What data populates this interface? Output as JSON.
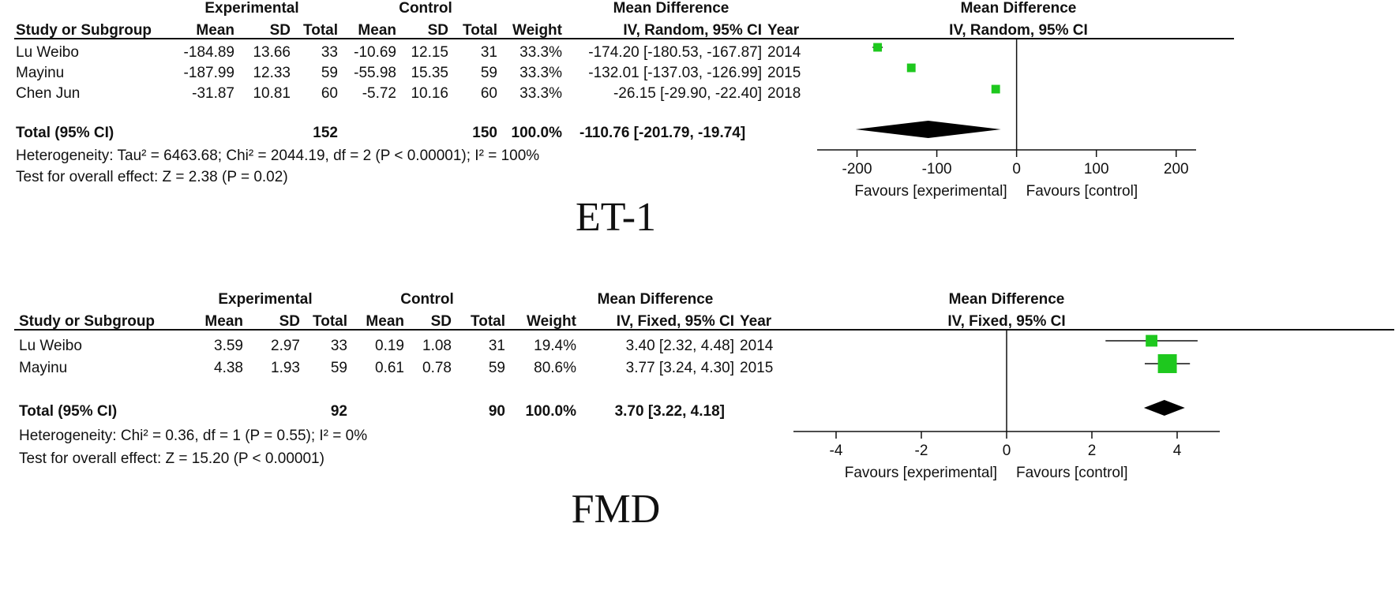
{
  "chart_data": [
    {
      "type": "forest",
      "caption": "ET-1",
      "group_headers": {
        "experimental": "Experimental",
        "control": "Control",
        "effect": "Mean Difference",
        "plot_title": "Mean Difference"
      },
      "columns": [
        "Study or Subgroup",
        "Mean",
        "SD",
        "Total",
        "Mean",
        "SD",
        "Total",
        "Weight",
        "IV, Random, 95% CI",
        "Year"
      ],
      "plot_subtitle": "IV, Random, 95% CI",
      "studies": [
        {
          "name": "Lu Weibo",
          "exp_mean": "-184.89",
          "exp_sd": "13.66",
          "exp_total": "33",
          "ctl_mean": "-10.69",
          "ctl_sd": "12.15",
          "ctl_total": "31",
          "weight": "33.3%",
          "ci_text": "-174.20 [-180.53, -167.87]",
          "year": "2014",
          "md": -174.2,
          "lo": -180.53,
          "hi": -167.87,
          "w": 33.3
        },
        {
          "name": "Mayinu",
          "exp_mean": "-187.99",
          "exp_sd": "12.33",
          "exp_total": "59",
          "ctl_mean": "-55.98",
          "ctl_sd": "15.35",
          "ctl_total": "59",
          "weight": "33.3%",
          "ci_text": "-132.01 [-137.03, -126.99]",
          "year": "2015",
          "md": -132.01,
          "lo": -137.03,
          "hi": -126.99,
          "w": 33.3
        },
        {
          "name": "Chen Jun",
          "exp_mean": "-31.87",
          "exp_sd": "10.81",
          "exp_total": "60",
          "ctl_mean": "-5.72",
          "ctl_sd": "10.16",
          "ctl_total": "60",
          "weight": "33.3%",
          "ci_text": "-26.15 [-29.90, -22.40]",
          "year": "2018",
          "md": -26.15,
          "lo": -29.9,
          "hi": -22.4,
          "w": 33.3
        }
      ],
      "total": {
        "label": "Total (95% CI)",
        "exp_total": "152",
        "ctl_total": "150",
        "weight": "100.0%",
        "ci_text": "-110.76 [-201.79, -19.74]",
        "md": -110.76,
        "lo": -201.79,
        "hi": -19.74
      },
      "heterogeneity": "Heterogeneity: Tau² = 6463.68; Chi² = 2044.19, df = 2 (P < 0.00001); I² = 100%",
      "overall_effect": "Test for overall effect: Z = 2.38 (P = 0.02)",
      "axis": {
        "xlim": [
          -250,
          225
        ],
        "ticks": [
          -200,
          -100,
          0,
          100,
          200
        ],
        "tick_labels": [
          "-200",
          "-100",
          "0",
          "100",
          "200"
        ],
        "left_label": "Favours [experimental]",
        "right_label": "Favours [control]"
      },
      "marker_color": "#1ec81e"
    },
    {
      "type": "forest",
      "caption": "FMD",
      "group_headers": {
        "experimental": "Experimental",
        "control": "Control",
        "effect": "Mean Difference",
        "plot_title": "Mean Difference"
      },
      "columns": [
        "Study or Subgroup",
        "Mean",
        "SD",
        "Total",
        "Mean",
        "SD",
        "Total",
        "Weight",
        "IV, Fixed, 95% CI",
        "Year"
      ],
      "plot_subtitle": "IV, Fixed, 95% CI",
      "studies": [
        {
          "name": "Lu Weibo",
          "exp_mean": "3.59",
          "exp_sd": "2.97",
          "exp_total": "33",
          "ctl_mean": "0.19",
          "ctl_sd": "1.08",
          "ctl_total": "31",
          "weight": "19.4%",
          "ci_text": "3.40 [2.32, 4.48]",
          "year": "2014",
          "md": 3.4,
          "lo": 2.32,
          "hi": 4.48,
          "w": 19.4
        },
        {
          "name": "Mayinu",
          "exp_mean": "4.38",
          "exp_sd": "1.93",
          "exp_total": "59",
          "ctl_mean": "0.61",
          "ctl_sd": "0.78",
          "ctl_total": "59",
          "weight": "80.6%",
          "ci_text": "3.77 [3.24, 4.30]",
          "year": "2015",
          "md": 3.77,
          "lo": 3.24,
          "hi": 4.3,
          "w": 80.6
        }
      ],
      "total": {
        "label": "Total (95% CI)",
        "exp_total": "92",
        "ctl_total": "90",
        "weight": "100.0%",
        "ci_text": "3.70 [3.22, 4.18]",
        "md": 3.7,
        "lo": 3.22,
        "hi": 4.18
      },
      "heterogeneity": "Heterogeneity: Chi² = 0.36, df = 1 (P = 0.55); I² = 0%",
      "overall_effect": "Test for overall effect: Z = 15.20 (P < 0.00001)",
      "axis": {
        "xlim": [
          -5,
          5
        ],
        "ticks": [
          -4,
          -2,
          0,
          2,
          4
        ],
        "tick_labels": [
          "-4",
          "-2",
          "0",
          "2",
          "4"
        ],
        "left_label": "Favours [experimental]",
        "right_label": "Favours [control]"
      },
      "marker_color": "#1ec81e"
    }
  ]
}
